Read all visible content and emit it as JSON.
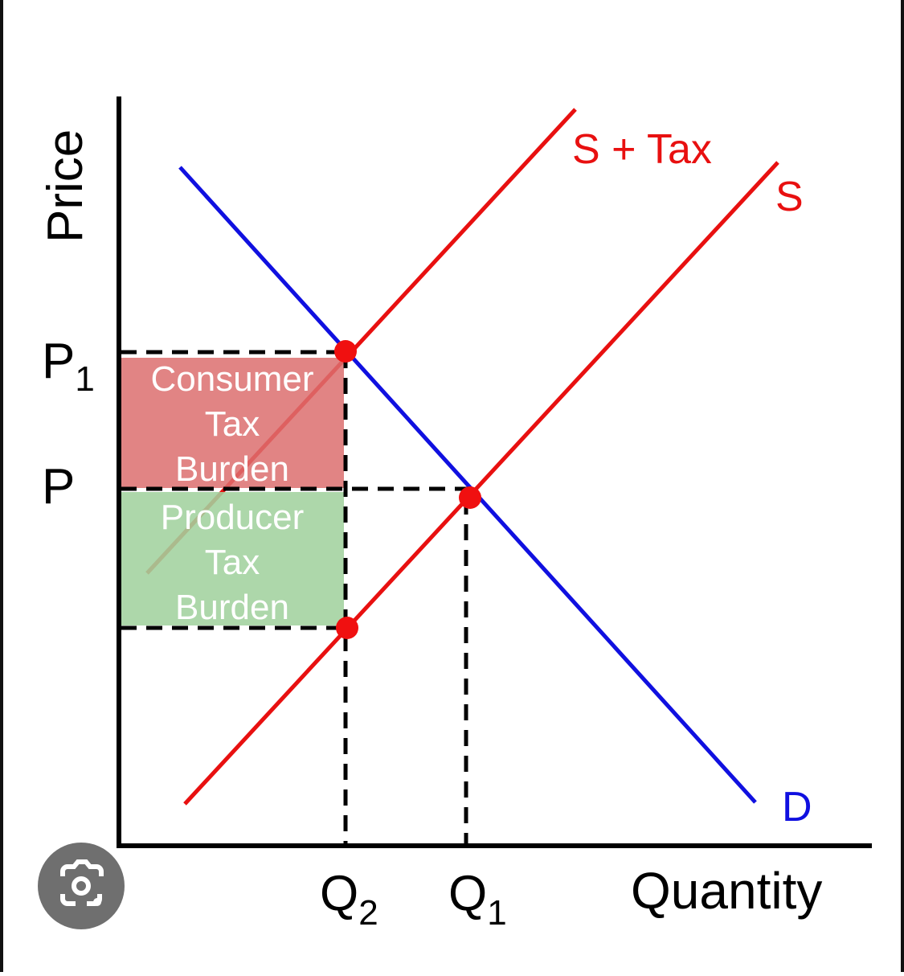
{
  "axes": {
    "y_label": "Price",
    "x_label": "Quantity"
  },
  "price_labels": [
    {
      "main": "P",
      "sub": "1"
    },
    {
      "main": "P"
    }
  ],
  "quantity_labels": [
    {
      "main": "Q",
      "sub": "2"
    },
    {
      "main": "Q",
      "sub": "1"
    }
  ],
  "curves": [
    {
      "label": "S + Tax"
    },
    {
      "label": "S"
    },
    {
      "label": "D"
    }
  ],
  "areas": [
    {
      "lines": [
        "Consumer",
        "Tax",
        "Burden"
      ]
    },
    {
      "lines": [
        "Producer",
        "Tax",
        "Burden"
      ]
    }
  ]
}
